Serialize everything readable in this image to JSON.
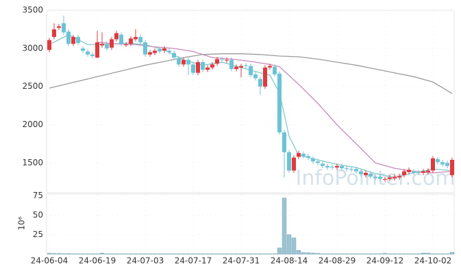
{
  "chart_data": {
    "type": "candlestick",
    "watermark": "InfoPointer.com",
    "categories": [
      "24-06-04",
      null,
      null,
      null,
      null,
      null,
      null,
      null,
      null,
      null,
      "24-06-19",
      null,
      null,
      null,
      null,
      null,
      null,
      null,
      null,
      null,
      "24-07-03",
      null,
      null,
      null,
      null,
      null,
      null,
      null,
      null,
      null,
      "24-07-17",
      null,
      null,
      null,
      null,
      null,
      null,
      null,
      null,
      null,
      "24-07-31",
      null,
      null,
      null,
      null,
      null,
      null,
      null,
      null,
      null,
      "24-08-14",
      null,
      null,
      null,
      null,
      null,
      null,
      null,
      null,
      null,
      "24-08-29",
      null,
      null,
      null,
      null,
      null,
      null,
      null,
      null,
      null,
      "24-09-12",
      null,
      null,
      null,
      null,
      null,
      null,
      null,
      null,
      null,
      "24-10-02",
      null,
      null,
      null,
      null
    ],
    "open": [
      2980,
      3150,
      3270,
      3330,
      3220,
      3060,
      3150,
      3000,
      2960,
      2920,
      2880,
      3040,
      3060,
      3010,
      3120,
      3180,
      3050,
      3060,
      3120,
      3150,
      3080,
      2920,
      2940,
      2990,
      2970,
      2970,
      2940,
      2870,
      2790,
      2850,
      2790,
      2680,
      2820,
      2720,
      2750,
      2800,
      2860,
      2840,
      2850,
      2730,
      2750,
      2780,
      2770,
      2660,
      2600,
      2500,
      2750,
      2760,
      2670,
      1900,
      1640,
      1400,
      1580,
      1620,
      1590,
      1560,
      1520,
      1490,
      1460,
      1450,
      1440,
      1460,
      1430,
      1420,
      1420,
      1390,
      1340,
      1360,
      1320,
      1320,
      1280,
      1290,
      1300,
      1310,
      1340,
      1380,
      1390,
      1380,
      1370,
      1380,
      1400,
      1550,
      1510,
      1500,
      1340
    ],
    "high": [
      3140,
      3330,
      3320,
      3430,
      3250,
      3180,
      3180,
      3030,
      2990,
      2950,
      3230,
      3210,
      3090,
      3150,
      3230,
      3210,
      3080,
      3160,
      3250,
      3180,
      3110,
      2980,
      3000,
      3020,
      3030,
      3000,
      2970,
      2900,
      2880,
      2880,
      2820,
      2850,
      2850,
      2780,
      2820,
      2890,
      2890,
      2880,
      2880,
      2790,
      2800,
      2810,
      2800,
      2690,
      2630,
      2780,
      2800,
      2790,
      2700,
      1930,
      1670,
      1600,
      1660,
      1650,
      1620,
      1590,
      1550,
      1520,
      1490,
      1480,
      1490,
      1490,
      1460,
      1450,
      1450,
      1420,
      1400,
      1390,
      1350,
      1350,
      1320,
      1340,
      1350,
      1360,
      1420,
      1440,
      1420,
      1410,
      1420,
      1430,
      1590,
      1580,
      1540,
      1530,
      1570
    ],
    "low": [
      2950,
      3120,
      3240,
      3180,
      3030,
      3030,
      3040,
      2940,
      2890,
      2870,
      2870,
      3010,
      2970,
      2980,
      3090,
      3030,
      3020,
      3030,
      3090,
      3050,
      2890,
      2890,
      2910,
      2930,
      2940,
      2920,
      2850,
      2760,
      2760,
      2650,
      2650,
      2650,
      2690,
      2690,
      2720,
      2770,
      2820,
      2810,
      2700,
      2700,
      2620,
      2740,
      2620,
      2580,
      2390,
      2470,
      2720,
      2630,
      1870,
      1310,
      1370,
      1370,
      1550,
      1560,
      1540,
      1490,
      1470,
      1430,
      1410,
      1410,
      1410,
      1400,
      1390,
      1380,
      1360,
      1320,
      1310,
      1290,
      1270,
      1260,
      1250,
      1260,
      1270,
      1280,
      1310,
      1350,
      1340,
      1340,
      1340,
      1350,
      1370,
      1480,
      1450,
      1430,
      1310
    ],
    "close": [
      3110,
      3250,
      3290,
      3210,
      3060,
      3150,
      3070,
      2970,
      2920,
      2900,
      3080,
      3060,
      3000,
      3120,
      3200,
      3060,
      3050,
      3130,
      3150,
      3080,
      2920,
      2950,
      2970,
      2960,
      3000,
      2950,
      2880,
      2790,
      2850,
      2790,
      2680,
      2820,
      2720,
      2750,
      2790,
      2860,
      2850,
      2850,
      2730,
      2760,
      2770,
      2770,
      2650,
      2610,
      2500,
      2750,
      2770,
      2660,
      1900,
      1640,
      1400,
      1570,
      1630,
      1590,
      1570,
      1520,
      1500,
      1460,
      1440,
      1440,
      1460,
      1430,
      1420,
      1410,
      1390,
      1350,
      1370,
      1320,
      1300,
      1290,
      1290,
      1310,
      1320,
      1330,
      1390,
      1410,
      1370,
      1370,
      1390,
      1400,
      1560,
      1510,
      1480,
      1460,
      1540
    ],
    "up_color": "#e0393e",
    "down_color": "#6cc3d5",
    "ylim": [
      1110,
      3500
    ],
    "yticks": [
      1500,
      2000,
      2500,
      3000,
      3500
    ],
    "grid": true,
    "moving_averages": [
      {
        "color": "#7fcac6",
        "x": [
          0,
          4,
          8,
          12,
          16,
          20,
          24,
          28,
          32,
          36,
          40,
          44,
          46,
          48,
          50,
          52,
          56,
          60,
          64,
          68,
          72,
          76,
          80,
          84
        ],
        "values": [
          3050,
          3180,
          3050,
          3050,
          3070,
          3050,
          2980,
          2850,
          2780,
          2820,
          2750,
          2680,
          2650,
          2420,
          1850,
          1600,
          1540,
          1480,
          1440,
          1360,
          1310,
          1370,
          1420,
          1400
        ]
      },
      {
        "color": "#c987bd",
        "x": [
          10,
          14,
          18,
          22,
          26,
          30,
          34,
          38,
          42,
          46,
          48,
          52,
          56,
          60,
          64,
          68,
          72,
          76,
          80,
          84
        ],
        "values": [
          3080,
          3060,
          3050,
          3020,
          3000,
          2960,
          2880,
          2860,
          2830,
          2790,
          2760,
          2530,
          2280,
          2000,
          1750,
          1500,
          1430,
          1390,
          1370,
          1390
        ]
      },
      {
        "color": "#9a9a9a",
        "x": [
          0,
          4,
          8,
          12,
          16,
          20,
          24,
          28,
          32,
          36,
          40,
          44,
          48,
          52,
          56,
          60,
          64,
          68,
          72,
          76,
          80,
          84
        ],
        "values": [
          2480,
          2540,
          2600,
          2660,
          2720,
          2780,
          2830,
          2880,
          2920,
          2930,
          2930,
          2920,
          2900,
          2890,
          2860,
          2820,
          2780,
          2730,
          2680,
          2630,
          2560,
          2410
        ]
      }
    ],
    "volume": {
      "y_label": "10⁶",
      "color": "#9cc3d2",
      "ylim": [
        0,
        77
      ],
      "yticks": [
        25,
        50,
        75
      ],
      "values": [
        1.2,
        1,
        1,
        0.8,
        0.9,
        0.6,
        0.6,
        0.6,
        0.6,
        0.6,
        0.6,
        1.5,
        0.6,
        0.6,
        0.6,
        0.6,
        0.6,
        0.6,
        0.6,
        0.6,
        0.6,
        0.6,
        0.6,
        0.6,
        0.6,
        0.6,
        0.6,
        0.6,
        0.6,
        0.6,
        0.6,
        0.6,
        0.6,
        0.6,
        0.6,
        0.6,
        0.6,
        0.6,
        0.6,
        0.6,
        0.6,
        0.6,
        0.6,
        0.6,
        0.6,
        0.6,
        0.6,
        0.6,
        8,
        72,
        25,
        21,
        5,
        2,
        2,
        1.5,
        1.2,
        0.6,
        0.6,
        0.6,
        0.6,
        0.6,
        0.6,
        0.6,
        0.6,
        0.6,
        0.6,
        0.6,
        0.6,
        0.6,
        1.2,
        0.6,
        0.6,
        0.6,
        0.6,
        0.6,
        0.6,
        0.6,
        1.5,
        1.5,
        0.6,
        0.6,
        0.6,
        0.6,
        2.5
      ]
    }
  }
}
